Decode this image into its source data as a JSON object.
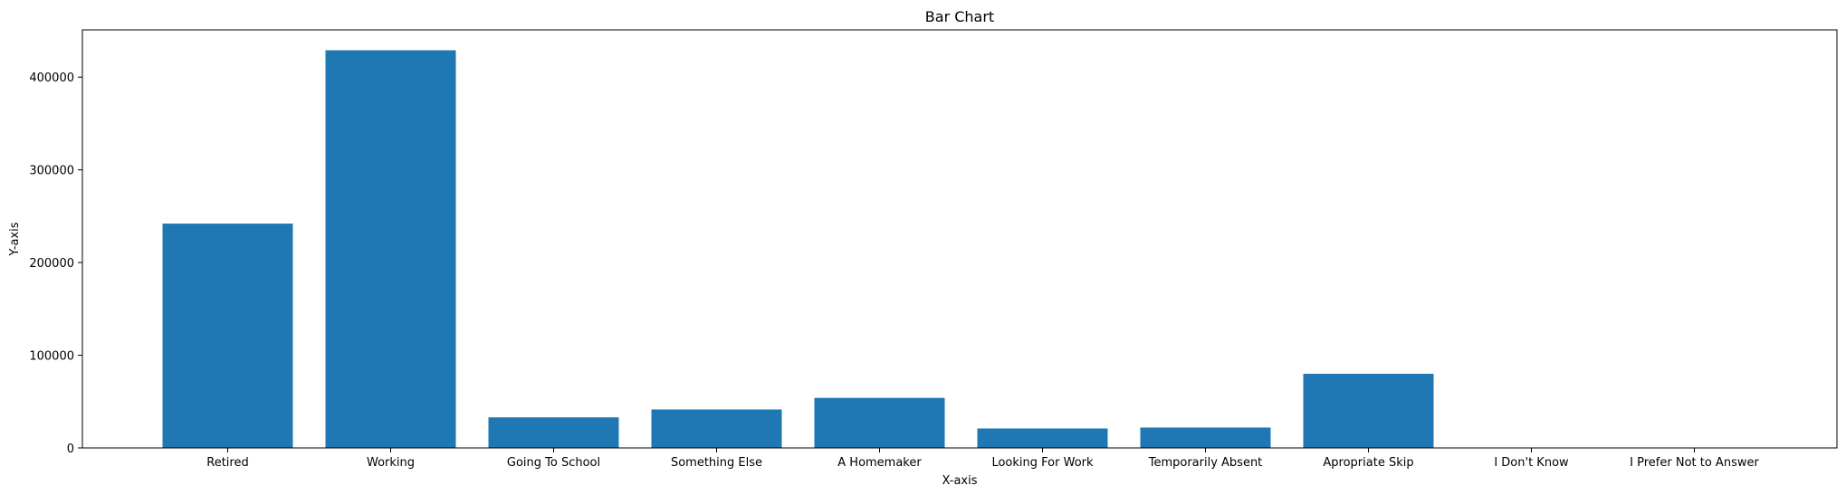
{
  "chart_data": {
    "type": "bar",
    "title": "Bar Chart",
    "xlabel": "X-axis",
    "ylabel": "Y-axis",
    "categories": [
      "Retired",
      "Working",
      "Going To School",
      "Something Else",
      "A Homemaker",
      "Looking For Work",
      "Temporarily Absent",
      "Apropriate Skip",
      "I Don't Know",
      "I Prefer Not to Answer"
    ],
    "values": [
      242000,
      429000,
      33000,
      41500,
      54000,
      21000,
      22000,
      80000,
      200,
      300
    ],
    "ylim": [
      0,
      451000
    ],
    "yticks": [
      0,
      100000,
      200000,
      300000,
      400000
    ],
    "ytick_labels": [
      "0",
      "100000",
      "200000",
      "300000",
      "400000"
    ],
    "bar_color": "#1f77b4",
    "grid": false,
    "legend": false
  }
}
